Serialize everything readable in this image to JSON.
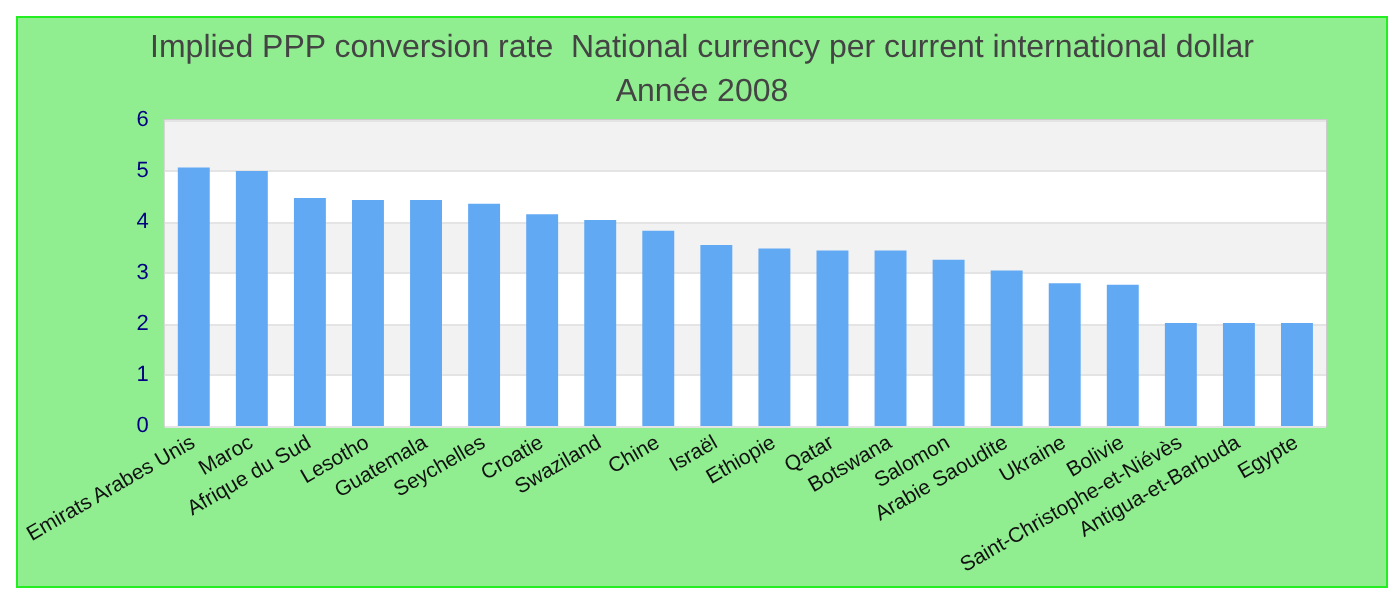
{
  "chart_data": {
    "type": "bar",
    "title": "Implied PPP conversion rate  National currency per current international dollar",
    "subtitle": "Année 2008",
    "categories": [
      "Emirats Arabes Unis",
      "Maroc",
      "Afrique du Sud",
      "Lesotho",
      "Guatemala",
      "Seychelles",
      "Croatie",
      "Swaziland",
      "Chine",
      "Israël",
      "Ethiopie",
      "Qatar",
      "Botswana",
      "Salomon",
      "Arabie Saoudite",
      "Ukraine",
      "Bolivie",
      "Saint-Christophe-et-Niévès",
      "Antigua-et-Barbuda",
      "Egypte"
    ],
    "values": [
      5.07,
      5.0,
      4.47,
      4.43,
      4.43,
      4.36,
      4.15,
      4.04,
      3.83,
      3.55,
      3.48,
      3.44,
      3.44,
      3.26,
      3.05,
      2.8,
      2.77,
      2.02,
      2.02,
      2.02
    ],
    "color": "#62a9f3",
    "ylim": [
      0,
      6
    ],
    "yticks": [
      0,
      1,
      2,
      3,
      4,
      5,
      6
    ],
    "grid": "y"
  }
}
